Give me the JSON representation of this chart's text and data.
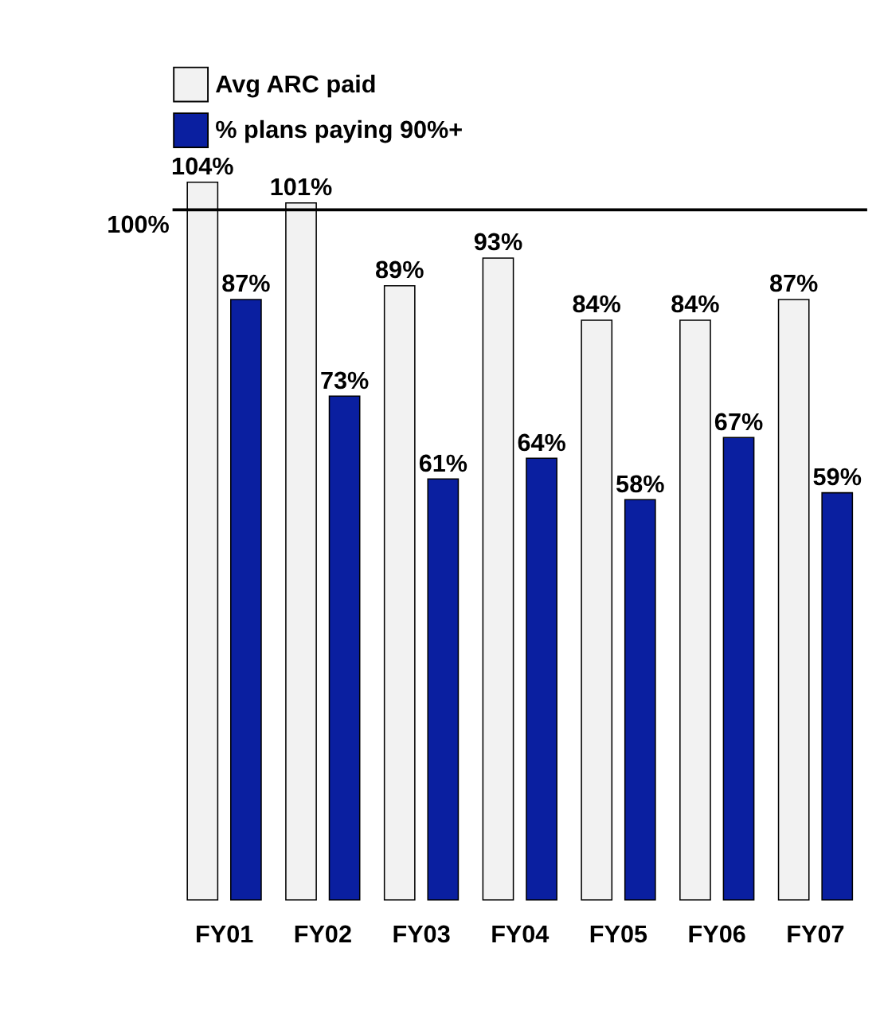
{
  "chart_data": {
    "type": "bar",
    "categories": [
      "FY01",
      "FY02",
      "FY03",
      "FY04",
      "FY05",
      "FY06",
      "FY07"
    ],
    "series": [
      {
        "name": "Avg ARC paid",
        "color": "#f2f2f2",
        "values": [
          104,
          101,
          89,
          93,
          84,
          84,
          87
        ],
        "value_labels": [
          "104%",
          "101%",
          "89%",
          "93%",
          "84%",
          "84%",
          "87%"
        ]
      },
      {
        "name": "% plans paying 90%+",
        "color": "#0a1fa0",
        "values": [
          87,
          73,
          61,
          64,
          58,
          67,
          59
        ],
        "value_labels": [
          "87%",
          "73%",
          "61%",
          "64%",
          "58%",
          "67%",
          "59%"
        ]
      }
    ],
    "ref_lines": [
      {
        "axis": "y",
        "value": 100,
        "label": "100%",
        "color": "#000000"
      }
    ],
    "legend": "top",
    "grid": false,
    "tick_labels": "x"
  }
}
